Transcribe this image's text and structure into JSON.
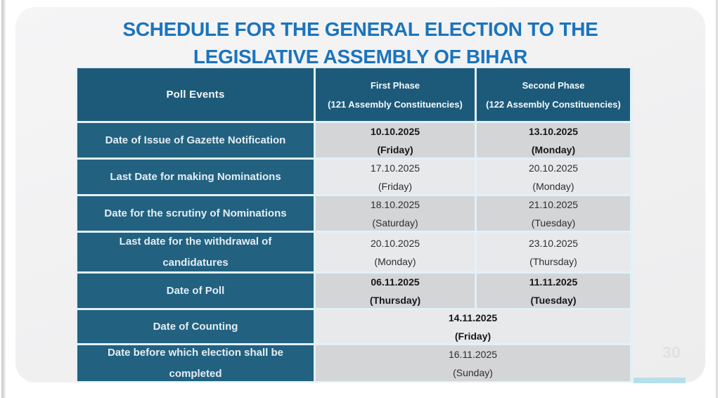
{
  "slide": {
    "title_line1": "SCHEDULE FOR THE GENERAL ELECTION TO THE",
    "title_line2": "LEGISLATIVE ASSEMBLY OF BIHAR",
    "page_number": "30"
  },
  "table": {
    "headers": {
      "poll_events": "Poll Events",
      "first_phase_title": "First Phase",
      "first_phase_sub": "(121 Assembly Constituencies)",
      "second_phase_title": "Second Phase",
      "second_phase_sub": "(122 Assembly Constituencies)"
    },
    "rows": [
      {
        "event": "Date of Issue of Gazette Notification",
        "first_date": "10.10.2025",
        "first_day": "(Friday)",
        "second_date": "13.10.2025",
        "second_day": "(Monday)"
      },
      {
        "event": "Last Date for making Nominations",
        "first_date": "17.10.2025",
        "first_day": "(Friday)",
        "second_date": "20.10.2025",
        "second_day": "(Monday)"
      },
      {
        "event": "Date for the scrutiny of Nominations",
        "first_date": "18.10.2025",
        "first_day": "(Saturday)",
        "second_date": "21.10.2025",
        "second_day": "(Tuesday)"
      },
      {
        "event": "Last date for the withdrawal of candidatures",
        "first_date": "20.10.2025",
        "first_day": "(Monday)",
        "second_date": "23.10.2025",
        "second_day": "(Thursday)"
      },
      {
        "event": "Date of Poll",
        "first_date": "06.11.2025",
        "first_day": "(Thursday)",
        "second_date": "11.11.2025",
        "second_day": "(Tuesday)"
      },
      {
        "event": "Date of Counting",
        "combined_date": "14.11.2025",
        "combined_day": "(Friday)"
      },
      {
        "event": "Date before which election shall be completed",
        "combined_date": "16.11.2025",
        "combined_day": "(Sunday)"
      }
    ]
  },
  "colors": {
    "title_blue": "#1b74bd",
    "header_teal": "#1d5a7a",
    "label_teal": "#226180",
    "row_dark_gray": "#d4d5d7",
    "row_light_gray": "#e8e9eb",
    "separator": "#e2f1f8",
    "cyan_strip": "#b5e0eb",
    "card_background": "#f2f2f2",
    "page_number_gray": "#e1e1e4"
  }
}
